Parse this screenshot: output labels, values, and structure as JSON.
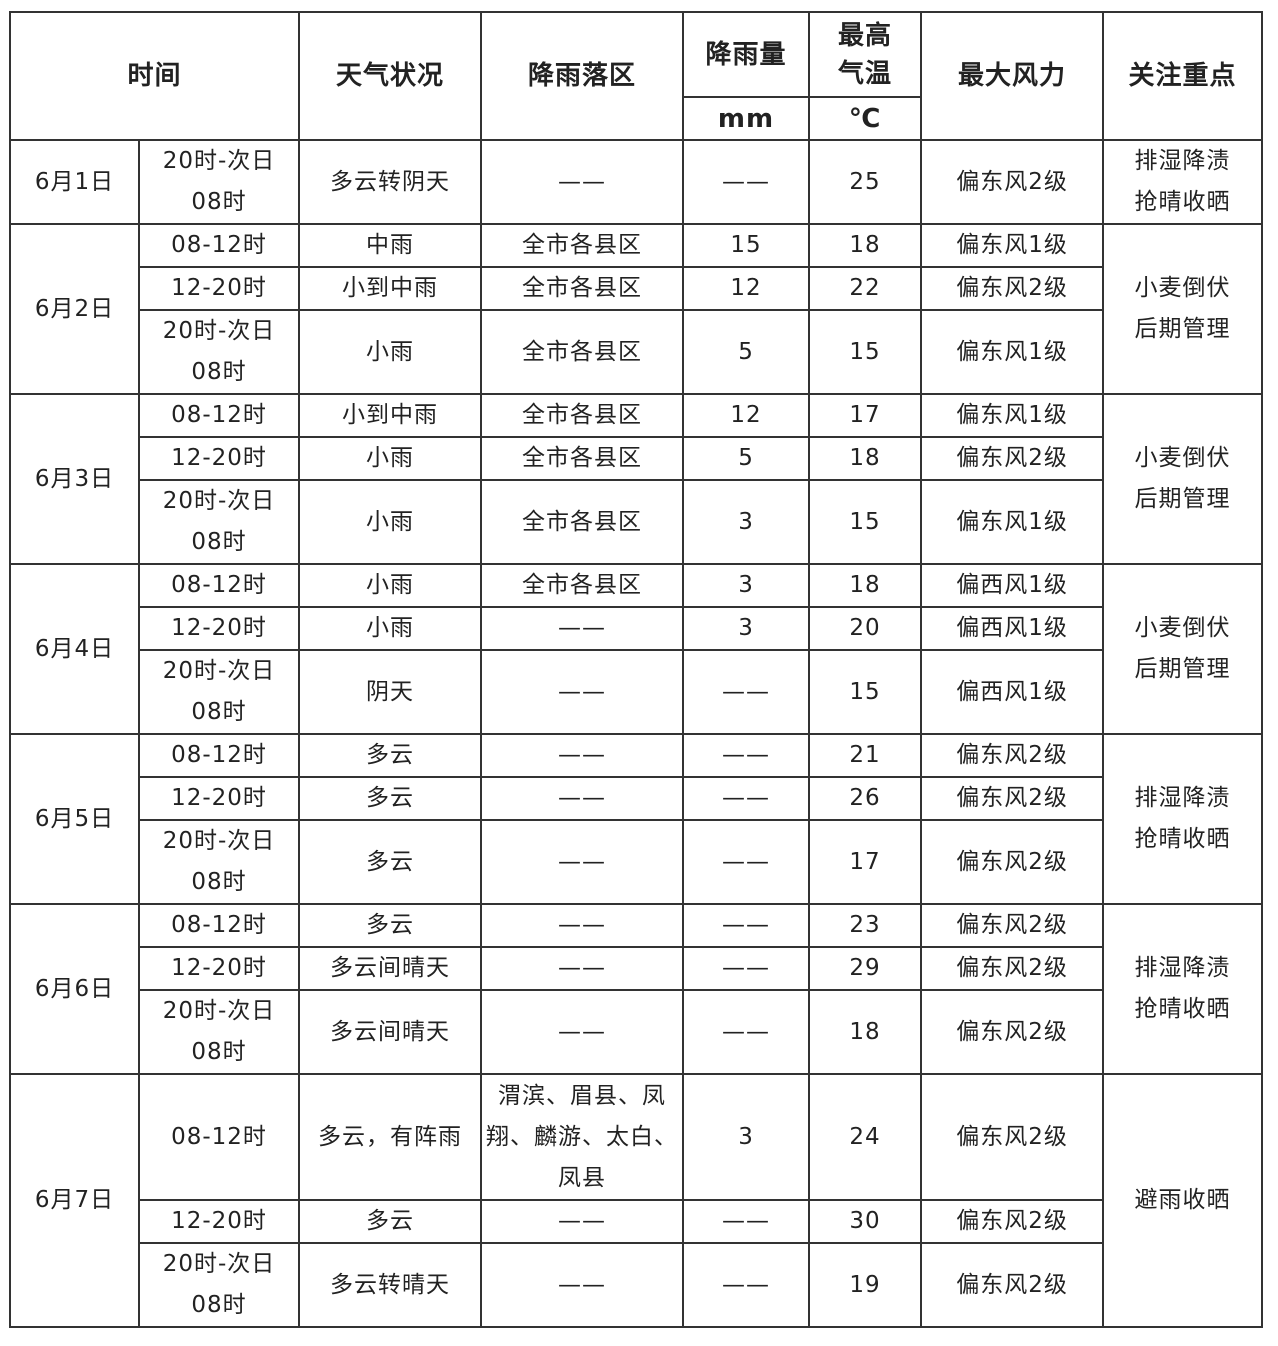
{
  "header": {
    "time": "时间",
    "weather": "天气状况",
    "area": "降雨落区",
    "rain": "降雨量",
    "rain_unit": "mm",
    "temp": "最高\n气温",
    "temp_unit": "℃",
    "wind": "最大风力",
    "focus": "关注重点"
  },
  "days": [
    {
      "date": "6月1日",
      "focus": "排湿降渍\n抢晴收晒",
      "rows": [
        {
          "time": "20时-次日\n08时",
          "weather": "多云转阴天",
          "area": "——",
          "rain": "——",
          "temp": 25,
          "wind": "偏东风2级"
        }
      ]
    },
    {
      "date": "6月2日",
      "focus": "小麦倒伏\n后期管理",
      "rows": [
        {
          "time": "08-12时",
          "weather": "中雨",
          "area": "全市各县区",
          "rain": 15,
          "temp": 18,
          "wind": "偏东风1级"
        },
        {
          "time": "12-20时",
          "weather": "小到中雨",
          "area": "全市各县区",
          "rain": 12,
          "temp": 22,
          "wind": "偏东风2级"
        },
        {
          "time": "20时-次日\n08时",
          "weather": "小雨",
          "area": "全市各县区",
          "rain": 5,
          "temp": 15,
          "wind": "偏东风1级"
        }
      ]
    },
    {
      "date": "6月3日",
      "focus": "小麦倒伏\n后期管理",
      "rows": [
        {
          "time": "08-12时",
          "weather": "小到中雨",
          "area": "全市各县区",
          "rain": 12,
          "temp": 17,
          "wind": "偏东风1级"
        },
        {
          "time": "12-20时",
          "weather": "小雨",
          "area": "全市各县区",
          "rain": 5,
          "temp": 18,
          "wind": "偏东风2级"
        },
        {
          "time": "20时-次日\n08时",
          "weather": "小雨",
          "area": "全市各县区",
          "rain": 3,
          "temp": 15,
          "wind": "偏东风1级"
        }
      ]
    },
    {
      "date": "6月4日",
      "focus": "小麦倒伏\n后期管理",
      "rows": [
        {
          "time": "08-12时",
          "weather": "小雨",
          "area": "全市各县区",
          "rain": 3,
          "temp": 18,
          "wind": "偏西风1级"
        },
        {
          "time": "12-20时",
          "weather": "小雨",
          "area": "——",
          "rain": 3,
          "temp": 20,
          "wind": "偏西风1级"
        },
        {
          "time": "20时-次日\n08时",
          "weather": "阴天",
          "area": "——",
          "rain": "——",
          "temp": 15,
          "wind": "偏西风1级"
        }
      ]
    },
    {
      "date": "6月5日",
      "focus": "排湿降渍\n抢晴收晒",
      "rows": [
        {
          "time": "08-12时",
          "weather": "多云",
          "area": "——",
          "rain": "——",
          "temp": 21,
          "wind": "偏东风2级"
        },
        {
          "time": "12-20时",
          "weather": "多云",
          "area": "——",
          "rain": "——",
          "temp": 26,
          "wind": "偏东风2级"
        },
        {
          "time": "20时-次日\n08时",
          "weather": "多云",
          "area": "——",
          "rain": "——",
          "temp": 17,
          "wind": "偏东风2级"
        }
      ]
    },
    {
      "date": "6月6日",
      "focus": "排湿降渍\n抢晴收晒",
      "rows": [
        {
          "time": "08-12时",
          "weather": "多云",
          "area": "——",
          "rain": "——",
          "temp": 23,
          "wind": "偏东风2级"
        },
        {
          "time": "12-20时",
          "weather": "多云间晴天",
          "area": "——",
          "rain": "——",
          "temp": 29,
          "wind": "偏东风2级"
        },
        {
          "time": "20时-次日\n08时",
          "weather": "多云间晴天",
          "area": "——",
          "rain": "——",
          "temp": 18,
          "wind": "偏东风2级"
        }
      ]
    },
    {
      "date": "6月7日",
      "focus": "避雨收晒",
      "rows": [
        {
          "time": "08-12时",
          "weather": "多云，有阵雨",
          "area": "渭滨、眉县、凤\n翔、麟游、太白、\n凤县",
          "rain": 3,
          "temp": 24,
          "wind": "偏东风2级"
        },
        {
          "time": "12-20时",
          "weather": "多云",
          "area": "——",
          "rain": "——",
          "temp": 30,
          "wind": "偏东风2级"
        },
        {
          "time": "20时-次日\n08时",
          "weather": "多云转晴天",
          "area": "——",
          "rain": "——",
          "temp": 19,
          "wind": "偏东风2级"
        }
      ]
    }
  ]
}
